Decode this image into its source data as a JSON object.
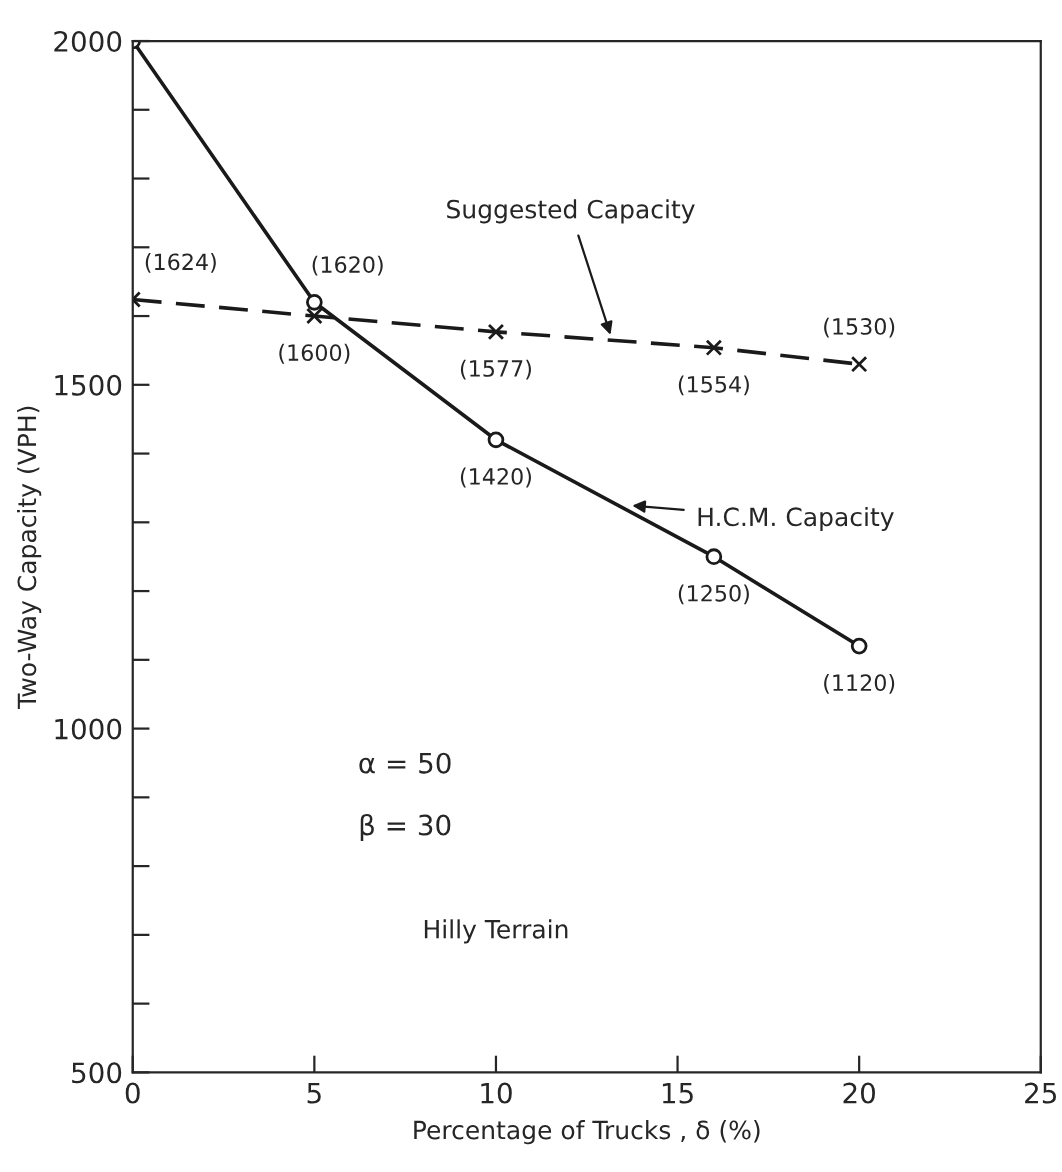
{
  "chart_data": {
    "type": "line",
    "xlabel": "Percentage of Trucks , δ (%)",
    "ylabel": "Two-Way Capacity (VPH)",
    "xlim": [
      0,
      25
    ],
    "ylim": [
      500,
      2000
    ],
    "xticks": [
      0,
      5,
      10,
      15,
      20,
      25
    ],
    "yticks": [
      500,
      {
        "value": 600,
        "label": null
      },
      {
        "value": 700,
        "label": null
      },
      {
        "value": 800,
        "label": null
      },
      {
        "value": 900,
        "label": null
      },
      1000,
      {
        "value": 1100,
        "label": null
      },
      {
        "value": 1200,
        "label": null
      },
      {
        "value": 1300,
        "label": null
      },
      {
        "value": 1400,
        "label": null
      },
      1500,
      {
        "value": 1600,
        "label": null
      },
      {
        "value": 1700,
        "label": null
      },
      {
        "value": 1800,
        "label": null
      },
      {
        "value": 1900,
        "label": null
      },
      2000
    ],
    "grid": false,
    "legend": false,
    "series": [
      {
        "color": "#1a1a1a",
        "x": [
          0,
          5,
          10,
          16,
          20
        ],
        "values": [
          2000,
          1620,
          1420,
          1250,
          1120
        ],
        "marker": "circle",
        "line_style": "solid",
        "value_labels": [
          null,
          "(1620)",
          "(1420)",
          "(1250)",
          "(1120)"
        ]
      },
      {
        "color": "#1a1a1a",
        "x": [
          0,
          5,
          10,
          16,
          20
        ],
        "values": [
          1624,
          1600,
          1577,
          1554,
          1530
        ],
        "marker": "cross",
        "line_style": "dashed",
        "value_labels": [
          "(1624)",
          "(1600)",
          "(1577)",
          "(1554)",
          "(1530)"
        ]
      }
    ],
    "annotations": [
      {
        "text": "Suggested Capacity",
        "x": 13.2,
        "y": 1565
      },
      {
        "text": "H.C.M. Capacity",
        "x": 13.6,
        "y": 1325
      },
      "α = 50",
      "β = 30",
      "Hilly Terrain"
    ]
  }
}
